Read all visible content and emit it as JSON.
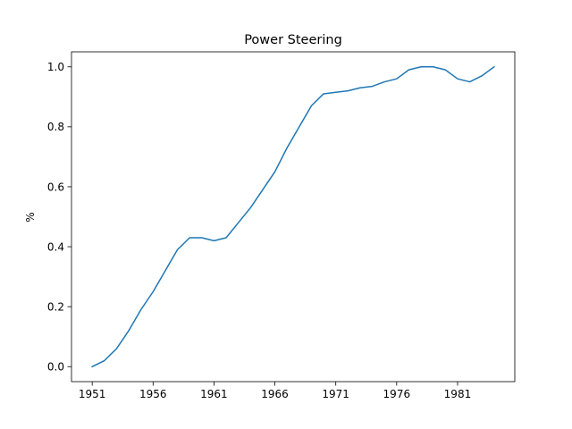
{
  "chart_data": {
    "type": "line",
    "title": "Power Steering",
    "xlabel": "",
    "ylabel": "%",
    "xlim": [
      1949.3,
      1985.7
    ],
    "ylim": [
      -0.05,
      1.05
    ],
    "x_ticks": [
      1951,
      1956,
      1961,
      1966,
      1971,
      1976,
      1981
    ],
    "y_ticks": [
      0.0,
      0.2,
      0.4,
      0.6,
      0.8,
      1.0
    ],
    "y_tick_labels": [
      "0.0",
      "0.2",
      "0.4",
      "0.6",
      "0.8",
      "1.0"
    ],
    "grid": false,
    "series": [
      {
        "color": "#1f77b4",
        "x": [
          1951,
          1952,
          1953,
          1954,
          1955,
          1956,
          1957,
          1958,
          1959,
          1960,
          1961,
          1962,
          1963,
          1964,
          1965,
          1966,
          1967,
          1968,
          1969,
          1970,
          1971,
          1972,
          1973,
          1974,
          1975,
          1976,
          1977,
          1978,
          1979,
          1980,
          1981,
          1982,
          1983,
          1984
        ],
        "values": [
          0.0,
          0.02,
          0.06,
          0.12,
          0.19,
          0.25,
          0.32,
          0.39,
          0.43,
          0.43,
          0.42,
          0.43,
          0.48,
          0.53,
          0.59,
          0.65,
          0.73,
          0.8,
          0.87,
          0.91,
          0.915,
          0.92,
          0.93,
          0.935,
          0.95,
          0.96,
          0.99,
          1.0,
          1.0,
          0.99,
          0.96,
          0.95,
          0.97,
          1.0
        ]
      }
    ]
  }
}
